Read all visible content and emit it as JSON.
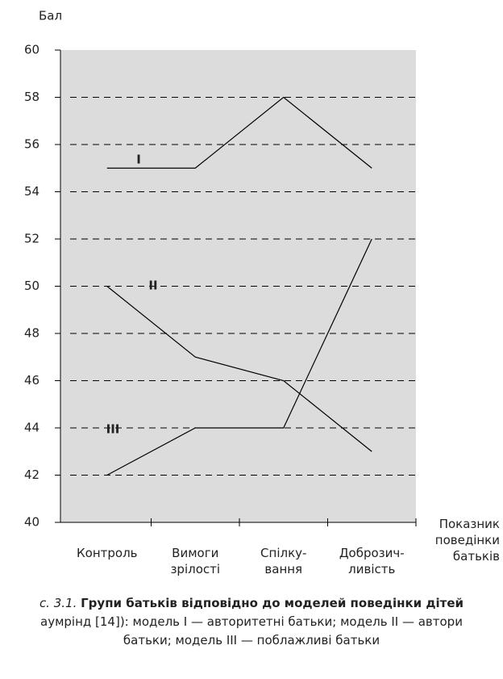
{
  "chart_data": {
    "type": "line",
    "y_label": "Бал",
    "x_label": "Показник\nповедінки\nбатьків",
    "categories": [
      "Контроль",
      "Вимоги\nзрілості",
      "Спілку-\nвання",
      "Доброзич-\nливість"
    ],
    "series": [
      {
        "name": "I",
        "color": "#000000",
        "values": [
          55,
          55,
          58,
          55
        ]
      },
      {
        "name": "II",
        "color": "#000000",
        "values": [
          50,
          47,
          46,
          43
        ]
      },
      {
        "name": "III",
        "color": "#000000",
        "values": [
          42,
          44,
          44,
          52
        ]
      }
    ],
    "ylim": [
      40,
      60
    ],
    "yticks": [
      40,
      42,
      44,
      46,
      48,
      50,
      52,
      54,
      56,
      58,
      60
    ],
    "grid": true,
    "caption": {
      "number": "с. 3.1.",
      "title": "Групи батьків відповідно до моделей поведінки дітей",
      "line2": "аумрінд [14]): модель I — авторитетні батьки; модель II — автори",
      "line3": "батьки; модель III — поблажливі батьки"
    }
  }
}
